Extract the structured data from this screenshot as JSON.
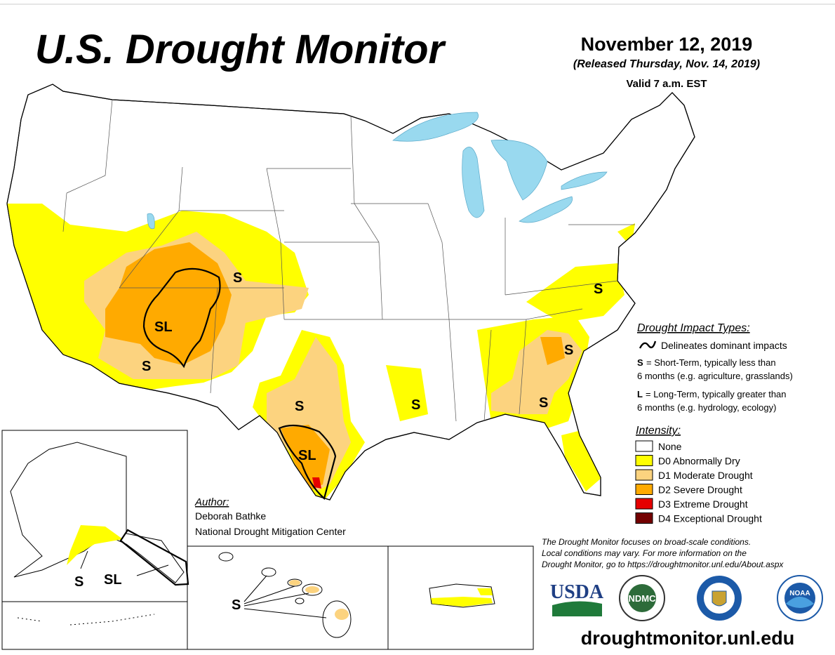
{
  "header": {
    "title": "U.S. Drought Monitor",
    "date": "November 12, 2019",
    "released": "(Released Thursday, Nov. 14, 2019)",
    "valid": "Valid 7 a.m. EST"
  },
  "impact_types": {
    "heading": "Drought Impact Types:",
    "delineates": "Delineates dominant impacts",
    "short_term": {
      "code": "S",
      "lines": [
        "= Short-Term, typically less than",
        "6 months (e.g. agriculture, grasslands)"
      ]
    },
    "long_term": {
      "code": "L",
      "lines": [
        "= Long-Term, typically greater than",
        "6 months (e.g. hydrology, ecology)"
      ]
    }
  },
  "intensity": {
    "heading": "Intensity:",
    "levels": [
      {
        "label": "None",
        "color": "#ffffff"
      },
      {
        "label": "D0 Abnormally Dry",
        "color": "#ffff00"
      },
      {
        "label": "D1 Moderate Drought",
        "color": "#fcd37f"
      },
      {
        "label": "D2 Severe Drought",
        "color": "#ffaa00"
      },
      {
        "label": "D3 Extreme Drought",
        "color": "#e60000"
      },
      {
        "label": "D4 Exceptional Drought",
        "color": "#730000"
      }
    ]
  },
  "author": {
    "heading": "Author:",
    "name": "Deborah Bathke",
    "org": "National Drought Mitigation Center"
  },
  "note": [
    "The Drought Monitor focuses on broad-scale conditions.",
    "Local conditions may vary. For more information on the",
    "Drought Monitor, go to https://droughtmonitor.unl.edu/About.aspx"
  ],
  "url": "droughtmonitor.unl.edu",
  "map_labels": [
    "S",
    "SL",
    "S",
    "S",
    "SL",
    "S",
    "S",
    "S",
    "S",
    "S",
    "SL",
    "S"
  ],
  "logos": [
    "USDA",
    "NDMC",
    "NOAA"
  ]
}
